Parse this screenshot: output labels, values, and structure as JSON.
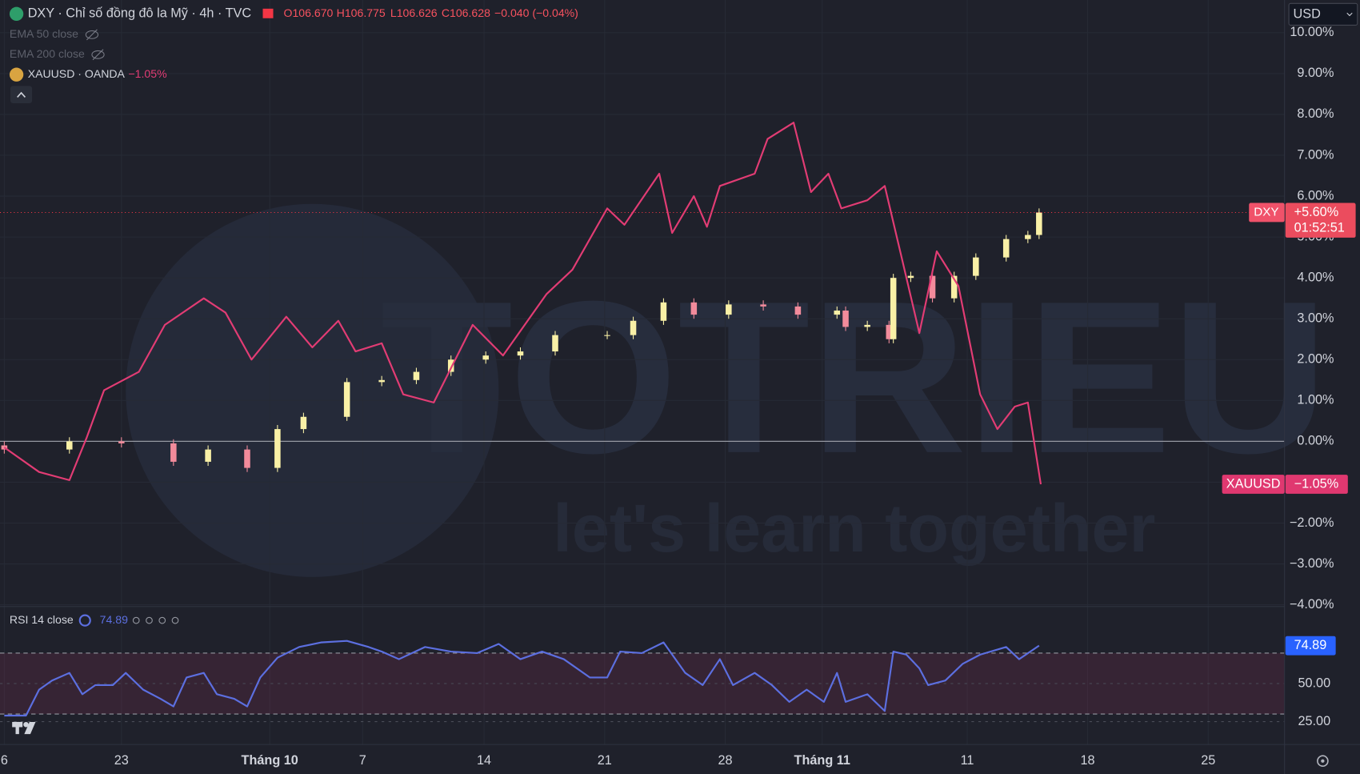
{
  "chart_data": [
    {
      "type": "candlestick",
      "title": "DXY · Chỉ số đồng đô la Mỹ · 4h · TVC",
      "ohlc_text": [
        "O106.670",
        "H106.775",
        "L106.626",
        "C106.628",
        "−0.040 (−0.04%)"
      ],
      "indicators": [
        "EMA 50 close",
        "EMA 200 close"
      ],
      "name": "DXY",
      "last_label": "+5.60%",
      "countdown": "01:52:51",
      "currency": "USD",
      "watermark": [
        "TOTRIEU",
        "let's learn together"
      ],
      "up_color": "#f9f0a6",
      "down_color": "#f28b9b",
      "x": [
        0.25,
        4.03,
        7.05,
        10.07,
        12.08,
        14.35,
        16.11,
        17.62,
        20.14,
        22.16,
        24.17,
        26.18,
        28.2,
        30.21,
        32.23,
        35.25,
        36.76,
        38.52,
        40.28,
        42.3,
        44.31,
        46.32,
        48.59,
        49.09,
        50.35,
        51.61,
        51.86,
        52.87,
        54.13,
        55.39,
        56.65,
        58.41,
        59.67,
        60.32
      ],
      "open": [
        -0.1,
        -0.2,
        0,
        -0.05,
        -0.5,
        -0.2,
        -0.65,
        0.3,
        0.6,
        1.45,
        1.5,
        1.7,
        2.0,
        2.1,
        2.2,
        2.6,
        2.6,
        2.95,
        3.4,
        3.1,
        3.35,
        3.3,
        3.1,
        3.2,
        2.8,
        2.85,
        2.5,
        4.0,
        4.05,
        3.5,
        4.05,
        4.5,
        4.95,
        5.05
      ],
      "high": [
        0.0,
        0.1,
        0.1,
        0.05,
        -0.1,
        -0.1,
        0.4,
        0.7,
        1.55,
        1.6,
        1.8,
        2.1,
        2.2,
        2.3,
        2.7,
        2.7,
        3.05,
        3.5,
        3.5,
        3.45,
        3.45,
        3.4,
        3.3,
        3.3,
        2.95,
        2.95,
        4.1,
        4.15,
        4.15,
        4.15,
        4.6,
        5.05,
        5.15,
        5.7
      ],
      "low": [
        -0.3,
        -0.3,
        -0.15,
        -0.6,
        -0.6,
        -0.75,
        -0.75,
        0.2,
        0.5,
        1.35,
        1.4,
        1.6,
        1.9,
        2.0,
        2.1,
        2.5,
        2.5,
        2.85,
        3.0,
        3.0,
        3.2,
        3.0,
        3.0,
        2.7,
        2.7,
        2.4,
        2.4,
        3.9,
        3.4,
        3.4,
        3.95,
        4.4,
        4.85,
        4.95
      ],
      "close": [
        -0.2,
        0,
        -0.05,
        -0.5,
        -0.2,
        -0.65,
        0.3,
        0.6,
        1.45,
        1.5,
        1.7,
        2.0,
        2.1,
        2.2,
        2.6,
        2.6,
        2.95,
        3.4,
        3.1,
        3.35,
        3.3,
        3.1,
        3.2,
        2.8,
        2.85,
        2.5,
        4.0,
        4.05,
        3.5,
        4.05,
        4.5,
        4.95,
        5.05,
        5.6
      ],
      "overlay": {
        "type": "line",
        "name": "XAUUSD · OANDA",
        "tag": "XAUUSD",
        "color": "#e23c74",
        "last_label": "−1.05%",
        "x": [
          0.25,
          2.27,
          4.03,
          5.04,
          6.04,
          8.06,
          9.57,
          11.83,
          13.09,
          14.6,
          16.62,
          18.13,
          19.64,
          20.64,
          22.16,
          23.41,
          25.18,
          27.44,
          29.2,
          31.72,
          33.23,
          35.25,
          36.25,
          38.27,
          39.02,
          40.28,
          41.04,
          41.79,
          43.81,
          44.56,
          46.07,
          47.08,
          48.09,
          48.84,
          50.35,
          51.36,
          52.37,
          53.37,
          54.38,
          55.64,
          56.9,
          57.9,
          58.91,
          59.67,
          60.42
        ],
        "values": [
          -0.15,
          -0.75,
          -0.95,
          0.1,
          1.25,
          1.7,
          2.85,
          3.5,
          3.15,
          2.0,
          3.05,
          2.3,
          2.95,
          2.2,
          2.4,
          1.15,
          0.95,
          2.85,
          2.1,
          3.6,
          4.2,
          5.7,
          5.3,
          6.55,
          5.1,
          6.0,
          5.25,
          6.25,
          6.55,
          7.4,
          7.8,
          6.1,
          6.55,
          5.7,
          5.9,
          6.25,
          4.45,
          2.65,
          4.65,
          3.8,
          1.15,
          0.3,
          0.85,
          0.95,
          -1.05
        ]
      },
      "baseline": 0,
      "xlim": [
        0,
        74.57
      ],
      "xticks": [
        {
          "value": 0.25,
          "label": "6"
        },
        {
          "value": 7.05,
          "label": "23"
        },
        {
          "value": 15.66,
          "label": "Tháng 10"
        },
        {
          "value": 21.05,
          "label": "7"
        },
        {
          "value": 28.1,
          "label": "14"
        },
        {
          "value": 35.1,
          "label": "21"
        },
        {
          "value": 42.1,
          "label": "28"
        },
        {
          "value": 47.73,
          "label": "Tháng 11"
        },
        {
          "value": 56.15,
          "label": "11"
        },
        {
          "value": 63.14,
          "label": "18"
        },
        {
          "value": 70.14,
          "label": "25"
        }
      ],
      "ylim": [
        -4,
        10.8
      ],
      "yticks": [
        {
          "value": 10,
          "label": "10.00%"
        },
        {
          "value": 9,
          "label": "9.00%"
        },
        {
          "value": 8,
          "label": "8.00%"
        },
        {
          "value": 7,
          "label": "7.00%"
        },
        {
          "value": 6,
          "label": "6.00%"
        },
        {
          "value": 5,
          "label": "5.00%"
        },
        {
          "value": 4,
          "label": "4.00%"
        },
        {
          "value": 3,
          "label": "3.00%"
        },
        {
          "value": 2,
          "label": "2.00%"
        },
        {
          "value": 1,
          "label": "1.00%"
        },
        {
          "value": 0,
          "label": "0.00%"
        },
        {
          "value": -1,
          "label": "−1.00%"
        },
        {
          "value": -2,
          "label": "−2.00%"
        },
        {
          "value": -3,
          "label": "−3.00%"
        },
        {
          "value": -4,
          "label": "−4.00%"
        }
      ],
      "grid": true
    },
    {
      "type": "line",
      "title": "RSI 14 close",
      "color": "#5c6fe0",
      "x": [
        0.25,
        1.51,
        2.27,
        3.02,
        4.03,
        4.78,
        5.54,
        6.55,
        7.3,
        8.31,
        9.32,
        10.07,
        10.83,
        11.83,
        12.59,
        13.6,
        14.35,
        15.11,
        16.11,
        17.37,
        18.63,
        20.14,
        21.4,
        22.16,
        23.16,
        24.67,
        26.18,
        27.69,
        28.95,
        30.21,
        31.47,
        32.73,
        34.24,
        35.25,
        36.0,
        37.26,
        38.52,
        39.78,
        40.79,
        41.79,
        42.55,
        43.81,
        44.81,
        45.82,
        46.83,
        47.83,
        48.59,
        49.09,
        50.35,
        51.36,
        51.86,
        52.62,
        53.37,
        53.88,
        54.88,
        55.89,
        56.9,
        58.41,
        59.16,
        60.32
      ],
      "values": [
        29,
        29,
        46,
        52,
        57,
        43,
        49,
        49,
        57,
        46,
        40,
        35,
        54,
        57,
        43,
        40,
        35,
        54,
        67,
        74,
        77,
        78,
        74,
        71,
        66,
        74,
        71,
        70,
        76,
        66,
        71,
        66,
        54,
        54,
        71,
        70,
        77,
        57,
        49,
        66,
        49,
        57,
        49,
        38,
        46,
        38,
        57,
        38,
        43,
        32,
        71,
        69,
        60,
        49,
        52,
        63,
        69,
        74,
        66,
        74.89
      ],
      "band": [
        30,
        70
      ],
      "ylim": [
        10,
        100
      ],
      "yticks": [
        {
          "value": 50,
          "label": "50.00"
        },
        {
          "value": 25,
          "label": "25.00"
        }
      ]
    }
  ]
}
